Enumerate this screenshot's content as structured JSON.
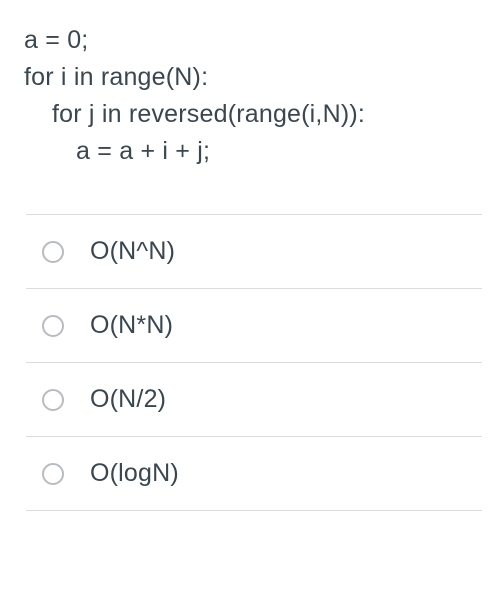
{
  "code": {
    "line1": "a = 0;",
    "line2": "for i in range(N):",
    "line3": "for j in reversed(range(i,N)):",
    "line4": "a = a + i + j;"
  },
  "options": [
    {
      "label": "O(N^N)"
    },
    {
      "label": "O(N*N)"
    },
    {
      "label": "O(N/2)"
    },
    {
      "label": "O(logN)"
    }
  ],
  "styling": {
    "text_color": "#3a4750",
    "border_color": "#dcdcdc",
    "radio_border_color": "#b8bcc0",
    "background_color": "#ffffff",
    "code_fontsize": 25,
    "option_fontsize": 25,
    "radio_size": 22,
    "indent_step": 26
  }
}
